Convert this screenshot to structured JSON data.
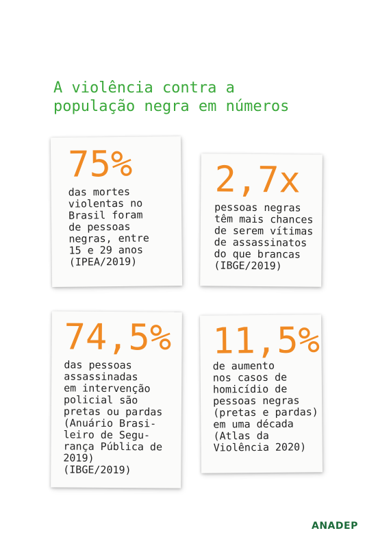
{
  "header": {
    "title_lines": [
      "A violência contra a",
      "população negra em números"
    ]
  },
  "cards": [
    {
      "stat": "75%",
      "lines": [
        "das mortes",
        "violentas no",
        "Brasil foram",
        "de pessoas",
        "negras, entre",
        "15 e 29 anos",
        "(IPEA/2019)"
      ]
    },
    {
      "stat": "2,7x",
      "lines": [
        "pessoas negras",
        "têm mais chances",
        "de serem vítimas",
        "de assassinatos",
        "do que brancas",
        "(IBGE/2019)"
      ]
    },
    {
      "stat": "74,5%",
      "lines": [
        "das pessoas",
        "assassinadas",
        "em intervenção",
        "policial são",
        "pretas ou pardas",
        "(Anuário Brasi-",
        "leiro de Segu-",
        "rança Pública de",
        "2019)",
        "(IBGE/2019)"
      ]
    },
    {
      "stat": "11,5%",
      "lines": [
        "de aumento",
        "nos casos de",
        "homicídio de",
        "pessoas negras",
        "(pretas e pardas)",
        "em uma década",
        "(Atlas da",
        "Violência 2020)"
      ]
    }
  ],
  "footer": {
    "logo": "ANADEP"
  }
}
